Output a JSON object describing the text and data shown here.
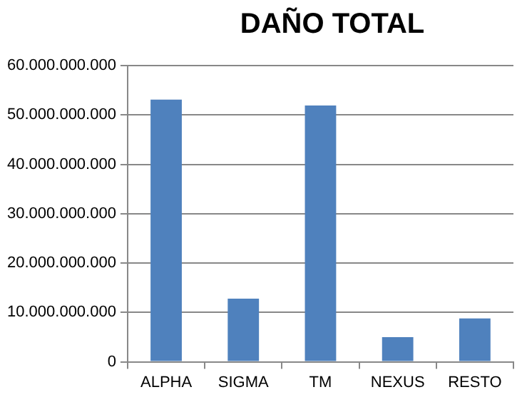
{
  "chart_data": {
    "type": "bar",
    "title": "DAÑO TOTAL",
    "categories": [
      "ALPHA",
      "SIGMA",
      "TM",
      "NEXUS",
      "RESTO"
    ],
    "values": [
      53100000000,
      12800000000,
      51900000000,
      5000000000,
      8800000000
    ],
    "color": "#4f81bd",
    "ylim": [
      0,
      60000000000
    ],
    "yticks": [
      {
        "value": 0,
        "label": "0"
      },
      {
        "value": 10000000000,
        "label": "10.000.000.000"
      },
      {
        "value": 20000000000,
        "label": "20.000.000.000"
      },
      {
        "value": 30000000000,
        "label": "30.000.000.000"
      },
      {
        "value": 40000000000,
        "label": "40.000.000.000"
      },
      {
        "value": 50000000000,
        "label": "50.000.000.000"
      },
      {
        "value": 60000000000,
        "label": "60.000.000.000"
      }
    ],
    "grid": "y",
    "legend": false
  }
}
